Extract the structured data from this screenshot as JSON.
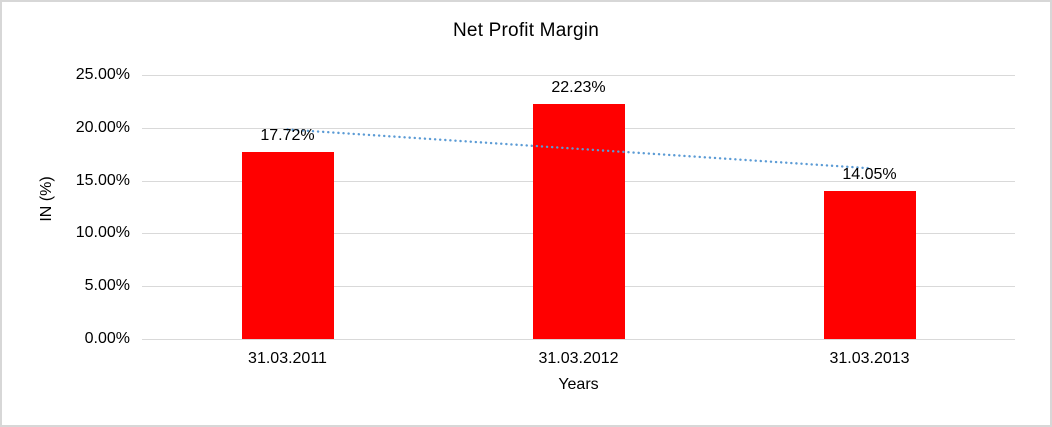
{
  "chart": {
    "title": "Net Profit Margin",
    "xlabel": "Years",
    "ylabel": "IN (%)"
  },
  "chart_data": {
    "type": "bar",
    "title": "Net Profit Margin",
    "categories": [
      "31.03.2011",
      "31.03.2012",
      "31.03.2013"
    ],
    "values": [
      17.72,
      22.23,
      14.05
    ],
    "data_labels": [
      "17.72%",
      "22.23%",
      "14.05%"
    ],
    "xlabel": "Years",
    "ylabel": "IN (%)",
    "ylim": [
      0,
      25
    ],
    "yticks": [
      0,
      5,
      10,
      15,
      20,
      25
    ],
    "ytick_labels": [
      "0.00%",
      "5.00%",
      "10.00%",
      "15.00%",
      "20.00%",
      "25.00%"
    ],
    "grid": true,
    "legend": "none",
    "bar_color": "#FF0000",
    "gridline_color": "#D9D9D9",
    "text_color": "#000000",
    "border_color": "#D7D7D7",
    "trendline": {
      "type": "linear",
      "style": "dotted",
      "color": "#5B9BD5",
      "start_value": 19.84,
      "end_value": 16.17
    }
  }
}
